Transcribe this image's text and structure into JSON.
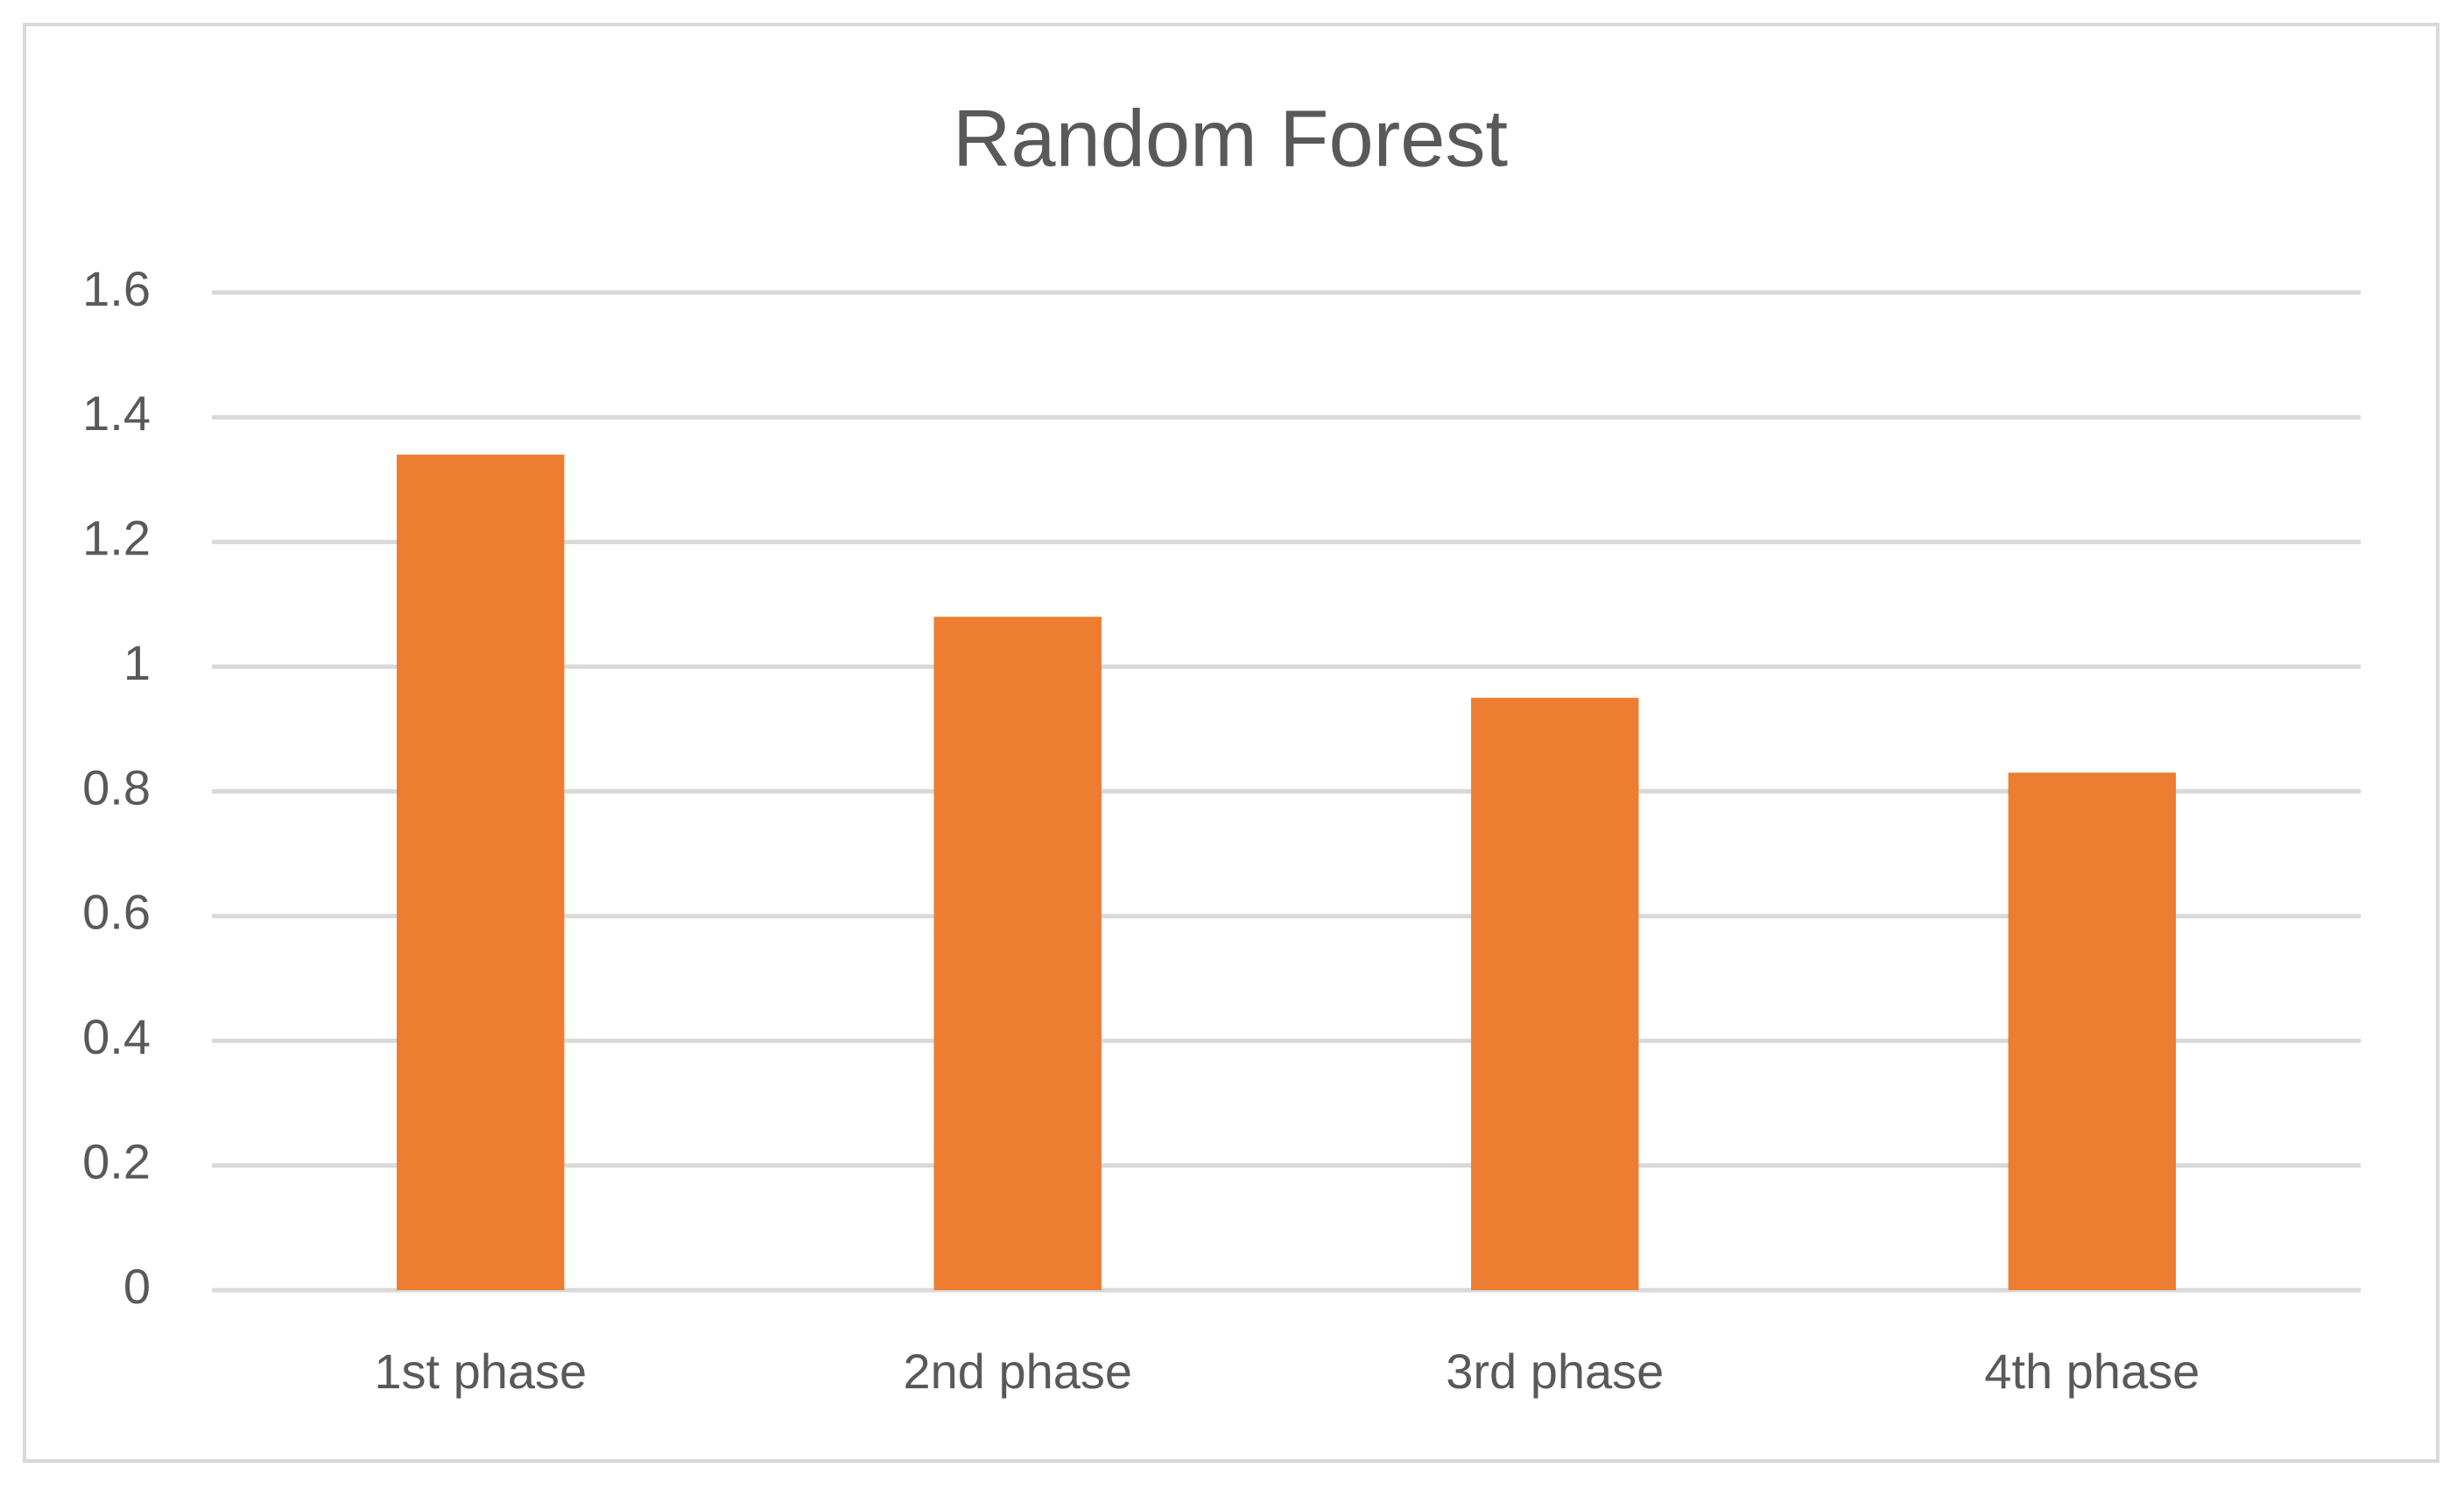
{
  "chart_data": {
    "type": "bar",
    "title": "Random Forest",
    "categories": [
      "1st phase",
      "2nd phase",
      "3rd phase",
      "4th phase"
    ],
    "values": [
      1.34,
      1.08,
      0.95,
      0.83
    ],
    "color": "#ed7d31",
    "ylim": [
      0,
      1.6
    ],
    "yticks": [
      0,
      0.2,
      0.4,
      0.6,
      0.8,
      1,
      1.2,
      1.4,
      1.6
    ],
    "grid": true
  }
}
